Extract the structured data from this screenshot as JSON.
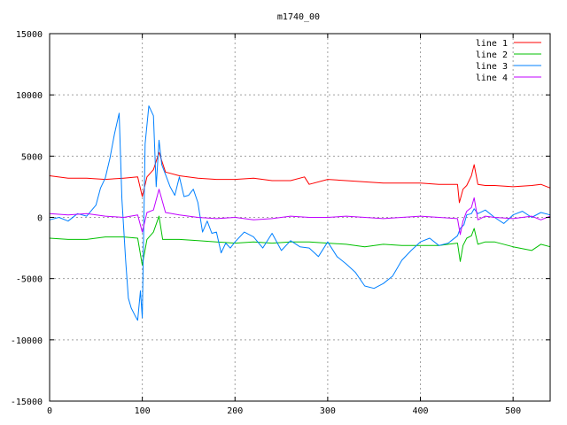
{
  "chart_data": {
    "type": "line",
    "title": "m1740_00",
    "xlabel": "",
    "ylabel": "",
    "xlim": [
      0,
      540
    ],
    "ylim": [
      -15000,
      15000
    ],
    "xticks": [
      0,
      100,
      200,
      300,
      400,
      500
    ],
    "yticks": [
      -15000,
      -10000,
      -5000,
      0,
      5000,
      10000,
      15000
    ],
    "xtick_labels": [
      "0",
      "100",
      "200",
      "300",
      "400",
      "500"
    ],
    "ytick_labels": [
      "-15000",
      "-10000",
      "-5000",
      "0",
      "5000",
      "10000",
      "15000"
    ],
    "grid": true,
    "legend_position": "top-right",
    "series": [
      {
        "name": "line 1",
        "color": "#ff0000",
        "x": [
          0,
          20,
          40,
          60,
          80,
          95,
          100,
          105,
          112,
          118,
          125,
          140,
          160,
          180,
          200,
          220,
          240,
          260,
          275,
          280,
          300,
          320,
          340,
          360,
          380,
          400,
          420,
          440,
          442,
          446,
          450,
          455,
          458,
          462,
          470,
          480,
          500,
          520,
          530,
          540
        ],
        "y": [
          3400,
          3200,
          3200,
          3100,
          3200,
          3300,
          1700,
          3300,
          3900,
          5300,
          3700,
          3400,
          3200,
          3100,
          3100,
          3200,
          3000,
          3000,
          3300,
          2700,
          3100,
          3000,
          2900,
          2800,
          2800,
          2800,
          2700,
          2700,
          1200,
          2300,
          2600,
          3400,
          4300,
          2700,
          2600,
          2600,
          2500,
          2600,
          2700,
          2400
        ]
      },
      {
        "name": "line 2",
        "color": "#00c000",
        "x": [
          0,
          20,
          40,
          60,
          80,
          95,
          100,
          105,
          112,
          118,
          122,
          140,
          160,
          180,
          200,
          220,
          240,
          260,
          280,
          300,
          320,
          340,
          360,
          380,
          400,
          420,
          440,
          443,
          446,
          450,
          455,
          458,
          462,
          470,
          480,
          500,
          520,
          530,
          540
        ],
        "y": [
          -1700,
          -1800,
          -1800,
          -1600,
          -1600,
          -1700,
          -3900,
          -1800,
          -1200,
          100,
          -1800,
          -1800,
          -1900,
          -2000,
          -2100,
          -2000,
          -2100,
          -2000,
          -2000,
          -2100,
          -2200,
          -2400,
          -2200,
          -2300,
          -2300,
          -2300,
          -2100,
          -3600,
          -2300,
          -1700,
          -1500,
          -900,
          -2200,
          -2000,
          -2000,
          -2400,
          -2700,
          -2200,
          -2400
        ]
      },
      {
        "name": "line 3",
        "color": "#0080ff",
        "x": [
          0,
          10,
          20,
          30,
          40,
          50,
          55,
          60,
          65,
          70,
          75,
          78,
          82,
          85,
          88,
          92,
          95,
          98,
          100,
          103,
          107,
          112,
          115,
          118,
          121,
          125,
          130,
          135,
          140,
          145,
          150,
          155,
          160,
          165,
          170,
          175,
          180,
          185,
          190,
          195,
          200,
          210,
          220,
          230,
          240,
          250,
          260,
          270,
          280,
          290,
          300,
          310,
          320,
          330,
          340,
          350,
          360,
          370,
          380,
          390,
          400,
          410,
          420,
          430,
          440,
          443,
          447,
          450,
          455,
          458,
          462,
          470,
          480,
          490,
          500,
          510,
          520,
          530,
          540
        ],
        "y": [
          -200,
          0,
          -300,
          300,
          100,
          1000,
          2400,
          3200,
          4800,
          6800,
          8500,
          1500,
          -3500,
          -6600,
          -7400,
          -8000,
          -8400,
          -6000,
          -8200,
          6000,
          9100,
          8300,
          2500,
          6300,
          4300,
          3500,
          2500,
          1800,
          3300,
          1700,
          1800,
          2300,
          1200,
          -1200,
          -300,
          -1300,
          -1200,
          -2900,
          -2100,
          -2500,
          -2000,
          -1200,
          -1600,
          -2500,
          -1300,
          -2700,
          -1900,
          -2400,
          -2500,
          -3200,
          -2000,
          -3200,
          -3800,
          -4500,
          -5600,
          -5800,
          -5400,
          -4800,
          -3500,
          -2700,
          -2000,
          -1700,
          -2300,
          -2100,
          -1500,
          -900,
          -600,
          200,
          300,
          700,
          300,
          600,
          0,
          -500,
          200,
          500,
          0,
          400,
          200
        ]
      },
      {
        "name": "line 4",
        "color": "#c000ff",
        "x": [
          0,
          20,
          40,
          60,
          80,
          95,
          100,
          105,
          112,
          118,
          125,
          140,
          160,
          180,
          200,
          220,
          240,
          260,
          280,
          300,
          320,
          340,
          360,
          380,
          400,
          420,
          440,
          443,
          446,
          450,
          455,
          458,
          462,
          470,
          480,
          500,
          520,
          530,
          540
        ],
        "y": [
          300,
          200,
          300,
          100,
          0,
          200,
          -1200,
          400,
          600,
          2300,
          400,
          200,
          0,
          -100,
          0,
          -200,
          -100,
          100,
          0,
          0,
          100,
          0,
          -100,
          0,
          100,
          0,
          -100,
          -1400,
          -300,
          500,
          800,
          1600,
          -200,
          100,
          0,
          -100,
          100,
          -200,
          100
        ]
      }
    ]
  }
}
